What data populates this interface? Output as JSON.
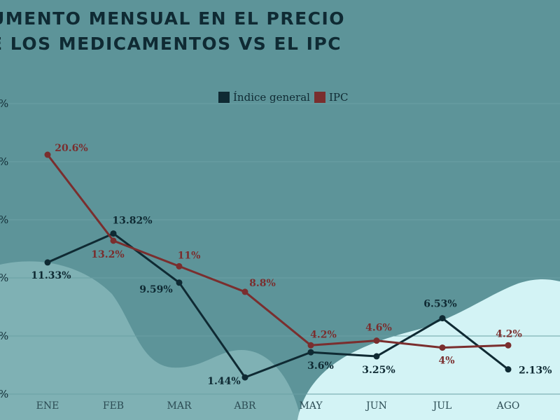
{
  "title_lines": [
    "UMENTO MENSUAL EN EL PRECIO",
    "E LOS MEDICAMENTOS VS EL IPC"
  ],
  "colors": {
    "background": "#5d9499",
    "indice_general": "#0f2a33",
    "ipc": "#7a2e2e",
    "blob_left": "#7fb1b4",
    "blob_right": "#d3f3f5",
    "grid": "#6aa1a5"
  },
  "chart_data": {
    "type": "line",
    "categories": [
      "ENE",
      "FEB",
      "MAR",
      "ABR",
      "MAY",
      "JUN",
      "JUL",
      "AGO"
    ],
    "ylim": [
      0,
      25
    ],
    "y_tick_labels": [
      "%",
      "%",
      "%",
      "%",
      "%",
      "%"
    ],
    "grid": true,
    "legend_position": "top",
    "series": [
      {
        "name": "Índice general",
        "values": [
          11.33,
          13.82,
          9.59,
          1.44,
          3.6,
          3.25,
          6.53,
          2.13
        ],
        "labels": [
          "11.33%",
          "13.82%",
          "9.59%",
          "1.44%",
          "3.6%",
          "3.25%",
          "6.53%",
          "2.13%"
        ]
      },
      {
        "name": "IPC",
        "values": [
          20.6,
          13.2,
          11,
          8.8,
          4.2,
          4.6,
          4,
          4.2
        ],
        "labels": [
          "20.6%",
          "13.2%",
          "11%",
          "8.8%",
          "4.2%",
          "4.6%",
          "4%",
          "4.2%"
        ]
      }
    ]
  }
}
